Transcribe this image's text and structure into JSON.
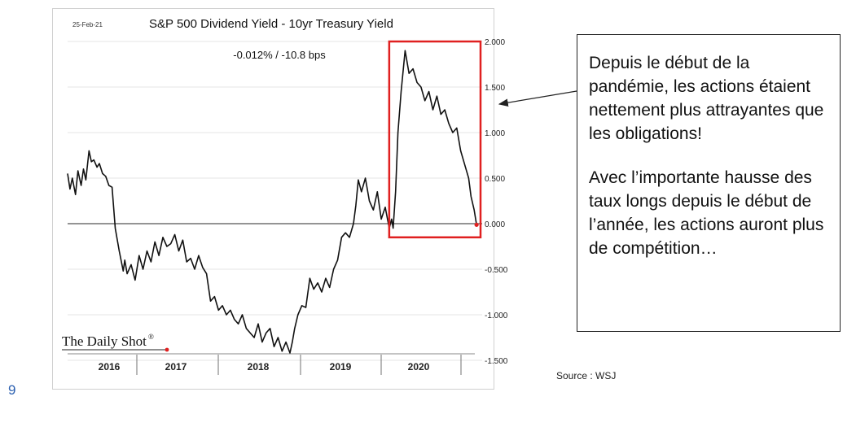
{
  "page_number": "9",
  "source": "Source : WSJ",
  "callout": {
    "paragraph1": "Depuis le début de la pandémie, les actions étaient nettement plus attrayantes que les obligations!",
    "paragraph2": "Avec l’importante hausse des taux longs depuis le début de l’année, les actions auront plus de compétition…"
  },
  "colors": {
    "line": "#111111",
    "highlight": "#e02020",
    "last_point": "#e02020"
  },
  "chart_data": {
    "type": "line",
    "title": "S&P 500 Dividend Yield - 10yr Treasury Yield",
    "date_label": "25-Feb-21",
    "annotation": "-0.012%  /  -10.8 bps",
    "branding": "The Daily Shot",
    "x_labels": [
      "2016",
      "2017",
      "2018",
      "2019",
      "2020"
    ],
    "y_ticks": [
      "2.000",
      "1.500",
      "1.000",
      "0.500",
      "0.000",
      "-0.500",
      "-1.000",
      "-1.500"
    ],
    "ylim": [
      -1.5,
      2.0
    ],
    "xlim": [
      2016.0,
      2021.2
    ],
    "grid": "horizontal",
    "highlight_box_x": [
      2020.05,
      2021.2
    ],
    "highlight_box_y": [
      -0.15,
      2.0
    ],
    "series": [
      {
        "x": [
          2016.0,
          2016.03,
          2016.06,
          2016.1,
          2016.13,
          2016.17,
          2016.2,
          2016.23,
          2016.27,
          2016.3,
          2016.33,
          2016.37,
          2016.4,
          2016.44,
          2016.48,
          2016.52,
          2016.56,
          2016.6,
          2016.65,
          2016.7,
          2016.72,
          2016.75,
          2016.8,
          2016.85,
          2016.9,
          2016.95,
          2017.0,
          2017.05,
          2017.1,
          2017.15,
          2017.2,
          2017.25,
          2017.3,
          2017.35,
          2017.4,
          2017.45,
          2017.5,
          2017.55,
          2017.6,
          2017.65,
          2017.7,
          2017.75,
          2017.8,
          2017.85,
          2017.9,
          2017.95,
          2018.0,
          2018.05,
          2018.1,
          2018.15,
          2018.2,
          2018.25,
          2018.3,
          2018.35,
          2018.4,
          2018.45,
          2018.5,
          2018.55,
          2018.6,
          2018.65,
          2018.7,
          2018.75,
          2018.8,
          2018.83,
          2018.86,
          2018.9,
          2018.95,
          2019.0,
          2019.05,
          2019.1,
          2019.15,
          2019.2,
          2019.25,
          2019.3,
          2019.35,
          2019.4,
          2019.45,
          2019.5,
          2019.55,
          2019.6,
          2019.63,
          2019.66,
          2019.7,
          2019.75,
          2019.8,
          2019.85,
          2019.9,
          2019.95,
          2020.0,
          2020.05,
          2020.08,
          2020.1,
          2020.13,
          2020.16,
          2020.2,
          2020.25,
          2020.3,
          2020.35,
          2020.4,
          2020.45,
          2020.5,
          2020.55,
          2020.6,
          2020.65,
          2020.7,
          2020.75,
          2020.8,
          2020.85,
          2020.9,
          2020.95,
          2021.0,
          2021.05,
          2021.08,
          2021.12,
          2021.15
        ],
        "y": [
          0.55,
          0.38,
          0.5,
          0.32,
          0.58,
          0.42,
          0.6,
          0.48,
          0.8,
          0.68,
          0.7,
          0.62,
          0.66,
          0.55,
          0.52,
          0.42,
          0.4,
          -0.05,
          -0.3,
          -0.52,
          -0.4,
          -0.55,
          -0.45,
          -0.62,
          -0.35,
          -0.5,
          -0.3,
          -0.42,
          -0.2,
          -0.35,
          -0.15,
          -0.25,
          -0.22,
          -0.12,
          -0.3,
          -0.18,
          -0.42,
          -0.38,
          -0.5,
          -0.35,
          -0.48,
          -0.55,
          -0.85,
          -0.8,
          -0.95,
          -0.9,
          -1.0,
          -0.95,
          -1.05,
          -1.1,
          -1.0,
          -1.15,
          -1.2,
          -1.25,
          -1.1,
          -1.3,
          -1.2,
          -1.15,
          -1.35,
          -1.25,
          -1.4,
          -1.3,
          -1.42,
          -1.3,
          -1.15,
          -1.0,
          -0.9,
          -0.92,
          -0.6,
          -0.72,
          -0.65,
          -0.75,
          -0.6,
          -0.7,
          -0.5,
          -0.4,
          -0.15,
          -0.1,
          -0.15,
          0.0,
          0.2,
          0.48,
          0.35,
          0.5,
          0.25,
          0.15,
          0.35,
          0.05,
          0.18,
          -0.05,
          0.05,
          -0.05,
          0.35,
          1.0,
          1.45,
          1.9,
          1.65,
          1.7,
          1.55,
          1.5,
          1.35,
          1.45,
          1.25,
          1.4,
          1.2,
          1.25,
          1.1,
          1.0,
          1.05,
          0.8,
          0.65,
          0.5,
          0.3,
          0.15,
          -0.012
        ]
      }
    ]
  }
}
